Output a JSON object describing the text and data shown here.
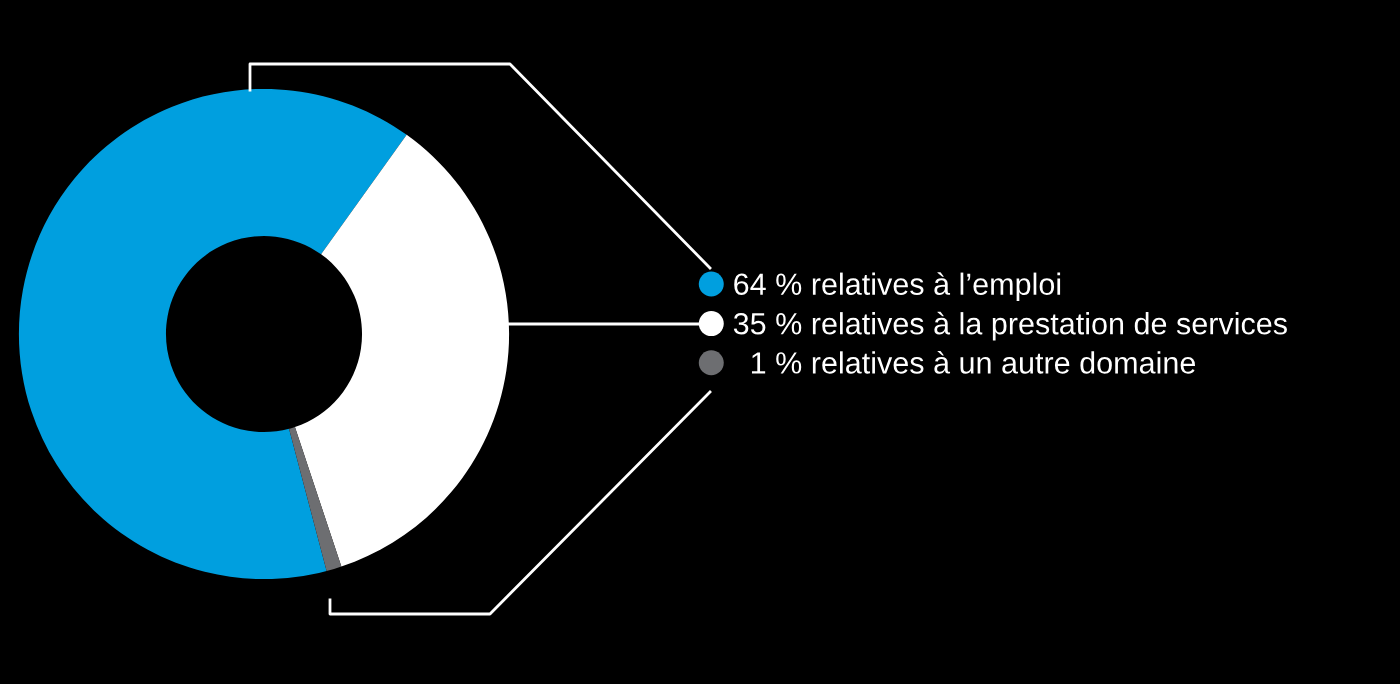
{
  "chart_data": {
    "type": "donut",
    "categories": [
      "64 % relatives à l’emploi",
      "35 % relatives à la prestation de services",
      "  1 % relatives à un autre domaine"
    ],
    "values": [
      64,
      35,
      1
    ],
    "colors": [
      "#009fdf",
      "#ffffff",
      "#6d6e71"
    ],
    "legend": "right"
  }
}
